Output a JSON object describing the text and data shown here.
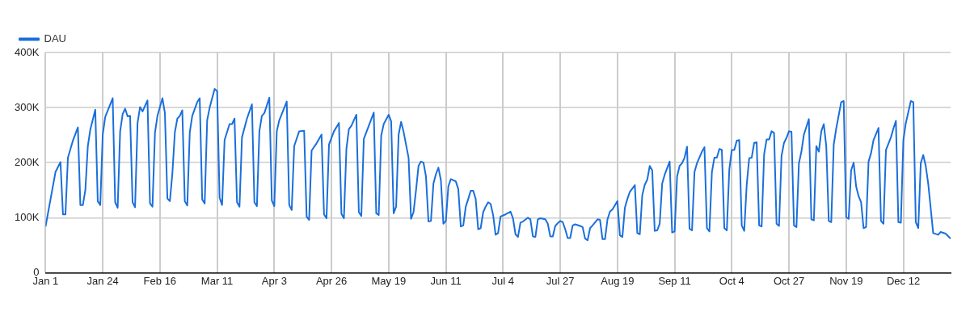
{
  "chart_data": {
    "type": "line",
    "x": [
      "--01-01",
      "--01-05",
      "--01-07",
      "--01-08",
      "--01-09",
      "--01-10",
      "--01-12",
      "--01-14",
      "--01-15",
      "--01-16",
      "--01-17",
      "--01-18",
      "--01-19",
      "--01-21",
      "--01-22",
      "--01-23",
      "--01-24",
      "--01-25",
      "--01-28",
      "--01-29",
      "--01-30",
      "--01-31",
      "--02-01",
      "--02-02",
      "--02-03",
      "--02-04",
      "--02-05",
      "--02-06",
      "--02-07",
      "--02-08",
      "--02-09",
      "--02-11",
      "--02-12",
      "--02-13",
      "--02-14",
      "--02-15",
      "--02-17",
      "--02-18",
      "--02-19",
      "--02-20",
      "--02-21",
      "--02-22",
      "--02-23",
      "--02-24",
      "--02-25",
      "--02-26",
      "--02-27",
      "--02-28",
      "--03-01",
      "--03-03",
      "--03-04",
      "--03-05",
      "--03-06",
      "--03-07",
      "--03-08",
      "--03-10",
      "--03-11",
      "--03-12",
      "--03-13",
      "--03-14",
      "--03-16",
      "--03-17",
      "--03-18",
      "--03-19",
      "--03-20",
      "--03-21",
      "--03-23",
      "--03-25",
      "--03-26",
      "--03-27",
      "--03-28",
      "--03-29",
      "--03-30",
      "--04-01",
      "--04-02",
      "--04-03",
      "--04-04",
      "--04-05",
      "--04-08",
      "--04-09",
      "--04-10",
      "--04-11",
      "--04-13",
      "--04-15",
      "--04-16",
      "--04-17",
      "--04-18",
      "--04-20",
      "--04-22",
      "--04-23",
      "--04-24",
      "--04-25",
      "--04-27",
      "--04-29",
      "--04-30",
      "--05-01",
      "--05-02",
      "--05-03",
      "--05-04",
      "--05-06",
      "--05-07",
      "--05-08",
      "--05-09",
      "--05-11",
      "--05-13",
      "--05-14",
      "--05-15",
      "--05-16",
      "--05-17",
      "--05-19",
      "--05-20",
      "--05-21",
      "--05-22",
      "--05-23",
      "--05-24",
      "--05-25",
      "--05-27",
      "--05-28",
      "--05-29",
      "--05-30",
      "--05-31",
      "--06-01",
      "--06-02",
      "--06-03",
      "--06-04",
      "--06-05",
      "--06-06",
      "--06-07",
      "--06-08",
      "--06-09",
      "--06-10",
      "--06-11",
      "--06-12",
      "--06-13",
      "--06-15",
      "--06-16",
      "--06-17",
      "--06-18",
      "--06-19",
      "--06-20",
      "--06-21",
      "--06-22",
      "--06-23",
      "--06-24",
      "--06-25",
      "--06-26",
      "--06-27",
      "--06-28",
      "--06-29",
      "--06-30",
      "--07-01",
      "--07-02",
      "--07-03",
      "--07-05",
      "--07-07",
      "--07-08",
      "--07-09",
      "--07-10",
      "--07-11",
      "--07-12",
      "--07-14",
      "--07-15",
      "--07-16",
      "--07-17",
      "--07-18",
      "--07-19",
      "--07-21",
      "--07-22",
      "--07-23",
      "--07-24",
      "--07-25",
      "--07-26",
      "--07-27",
      "--07-28",
      "--07-29",
      "--07-30",
      "--07-31",
      "--08-01",
      "--08-02",
      "--08-04",
      "--08-05",
      "--08-06",
      "--08-07",
      "--08-08",
      "--08-09",
      "--08-11",
      "--08-12",
      "--08-13",
      "--08-14",
      "--08-15",
      "--08-16",
      "--08-17",
      "--08-19",
      "--08-20",
      "--08-21",
      "--08-22",
      "--08-23",
      "--08-24",
      "--08-26",
      "--08-27",
      "--08-28",
      "--08-29",
      "--08-30",
      "--08-31",
      "--09-01",
      "--09-02",
      "--09-03",
      "--09-04",
      "--09-05",
      "--09-06",
      "--09-07",
      "--09-09",
      "--09-10",
      "--09-11",
      "--09-12",
      "--09-13",
      "--09-14",
      "--09-15",
      "--09-16",
      "--09-17",
      "--09-18",
      "--09-19",
      "--09-20",
      "--09-22",
      "--09-23",
      "--09-24",
      "--09-25",
      "--09-26",
      "--09-27",
      "--09-28",
      "--09-29",
      "--09-30",
      "--10-01",
      "--10-02",
      "--10-03",
      "--10-04",
      "--10-05",
      "--10-06",
      "--10-07",
      "--10-08",
      "--10-09",
      "--10-10",
      "--10-11",
      "--10-12",
      "--10-13",
      "--10-14",
      "--10-15",
      "--10-16",
      "--10-17",
      "--10-18",
      "--10-19",
      "--10-20",
      "--10-21",
      "--10-22",
      "--10-23",
      "--10-24",
      "--10-25",
      "--10-26",
      "--10-27",
      "--10-28",
      "--10-29",
      "--10-30",
      "--10-31",
      "--11-01",
      "--11-02",
      "--11-04",
      "--11-05",
      "--11-06",
      "--11-07",
      "--11-08",
      "--11-09",
      "--11-10",
      "--11-11",
      "--11-12",
      "--11-13",
      "--11-14",
      "--11-15",
      "--11-17",
      "--11-18",
      "--11-19",
      "--11-20",
      "--11-21",
      "--11-22",
      "--11-23",
      "--11-24",
      "--11-25",
      "--11-26",
      "--11-27",
      "--11-28",
      "--11-29",
      "--11-30",
      "--12-02",
      "--12-03",
      "--12-04",
      "--12-05",
      "--12-07",
      "--12-08",
      "--12-09",
      "--12-10",
      "--12-11",
      "--12-12",
      "--12-13",
      "--12-15",
      "--12-16",
      "--12-17",
      "--12-18",
      "--12-19",
      "--12-20",
      "--12-21",
      "--12-22",
      "--12-24",
      "--12-26",
      "--12-27",
      "--12-29",
      "--12-31"
    ],
    "series": [
      {
        "name": "DAU",
        "color": "#1a6fdc",
        "values": [
          84000,
          183000,
          201000,
          106000,
          106000,
          209000,
          240000,
          264000,
          123000,
          123000,
          150000,
          230000,
          260000,
          296000,
          130000,
          123000,
          251000,
          283000,
          317000,
          128000,
          118000,
          257000,
          288000,
          298000,
          284000,
          285000,
          128000,
          119000,
          272000,
          301000,
          293000,
          313000,
          126000,
          120000,
          254000,
          285000,
          317000,
          290000,
          135000,
          130000,
          180000,
          255000,
          280000,
          285000,
          295000,
          130000,
          122000,
          255000,
          285000,
          310000,
          317000,
          133000,
          126000,
          277000,
          300000,
          334000,
          330000,
          136000,
          123000,
          241000,
          270000,
          270000,
          280000,
          128000,
          120000,
          246000,
          280000,
          306000,
          128000,
          121000,
          257000,
          285000,
          290000,
          318000,
          131000,
          121000,
          257000,
          277000,
          311000,
          123000,
          114000,
          230000,
          257000,
          258000,
          102000,
          96000,
          222000,
          235000,
          251000,
          106000,
          99000,
          233000,
          257000,
          272000,
          107000,
          99000,
          225000,
          261000,
          267000,
          287000,
          110000,
          103000,
          243000,
          267000,
          291000,
          108000,
          105000,
          249000,
          270000,
          287000,
          275000,
          108000,
          120000,
          251000,
          274000,
          256000,
          209000,
          98000,
          110000,
          150000,
          194000,
          202000,
          200000,
          175000,
          93000,
          94000,
          162000,
          179000,
          191000,
          168000,
          89000,
          94000,
          157000,
          170000,
          166000,
          152000,
          84000,
          86000,
          120000,
          134000,
          149000,
          149000,
          134000,
          79000,
          81000,
          110000,
          120000,
          128000,
          125000,
          105000,
          69000,
          72000,
          102000,
          106000,
          111000,
          99000,
          70000,
          65000,
          91000,
          93000,
          100000,
          97000,
          66000,
          65000,
          97000,
          99000,
          97000,
          89000,
          66000,
          66000,
          85000,
          90000,
          94000,
          92000,
          79000,
          63000,
          63000,
          86000,
          88000,
          85000,
          83000,
          62000,
          59000,
          81000,
          86000,
          97000,
          96000,
          61000,
          61000,
          97000,
          111000,
          115000,
          130000,
          68000,
          65000,
          118000,
          134000,
          147000,
          159000,
          72000,
          70000,
          141000,
          160000,
          169000,
          194000,
          186000,
          76000,
          77000,
          89000,
          162000,
          178000,
          202000,
          73000,
          75000,
          175000,
          194000,
          199000,
          209000,
          229000,
          80000,
          77000,
          183000,
          199000,
          220000,
          228000,
          81000,
          75000,
          183000,
          209000,
          209000,
          225000,
          223000,
          81000,
          77000,
          188000,
          223000,
          223000,
          240000,
          241000,
          86000,
          76000,
          160000,
          208000,
          209000,
          236000,
          237000,
          86000,
          84000,
          215000,
          242000,
          242000,
          257000,
          254000,
          89000,
          85000,
          212000,
          236000,
          245000,
          257000,
          256000,
          86000,
          83000,
          199000,
          220000,
          251000,
          279000,
          97000,
          95000,
          230000,
          220000,
          257000,
          270000,
          230000,
          94000,
          92000,
          233000,
          262000,
          310000,
          312000,
          101000,
          98000,
          186000,
          200000,
          157000,
          139000,
          128000,
          81000,
          83000,
          202000,
          217000,
          241000,
          263000,
          94000,
          89000,
          223000,
          246000,
          262000,
          276000,
          92000,
          91000,
          241000,
          272000,
          312000,
          310000,
          92000,
          81000,
          199000,
          214000,
          194000,
          162000,
          72000,
          69000,
          74000,
          71000,
          62000
        ]
      }
    ],
    "xlim": [
      "--01-01",
      "--12-31"
    ],
    "xticks": [
      {
        "value": "--01-01",
        "label": "Jan 1"
      },
      {
        "value": "--01-24",
        "label": "Jan 24"
      },
      {
        "value": "--02-16",
        "label": "Feb 16"
      },
      {
        "value": "--03-11",
        "label": "Mar 11"
      },
      {
        "value": "--04-03",
        "label": "Apr 3"
      },
      {
        "value": "--04-26",
        "label": "Apr 26"
      },
      {
        "value": "--05-19",
        "label": "May 19"
      },
      {
        "value": "--06-11",
        "label": "Jun 11"
      },
      {
        "value": "--07-04",
        "label": "Jul 4"
      },
      {
        "value": "--07-27",
        "label": "Jul 27"
      },
      {
        "value": "--08-19",
        "label": "Aug 19"
      },
      {
        "value": "--09-11",
        "label": "Sep 11"
      },
      {
        "value": "--10-04",
        "label": "Oct 4"
      },
      {
        "value": "--10-27",
        "label": "Oct 27"
      },
      {
        "value": "--11-19",
        "label": "Nov 19"
      },
      {
        "value": "--12-12",
        "label": "Dec 12"
      }
    ],
    "ylim": [
      0,
      400000
    ],
    "yticks": [
      0,
      {
        "value": 100000,
        "label": "100K"
      },
      {
        "value": 200000,
        "label": "200K"
      },
      {
        "value": 300000,
        "label": "300K"
      },
      {
        "value": 400000,
        "label": "400K"
      }
    ],
    "grid": true,
    "legend": "top left",
    "marker": "none",
    "line_style": "solid"
  }
}
